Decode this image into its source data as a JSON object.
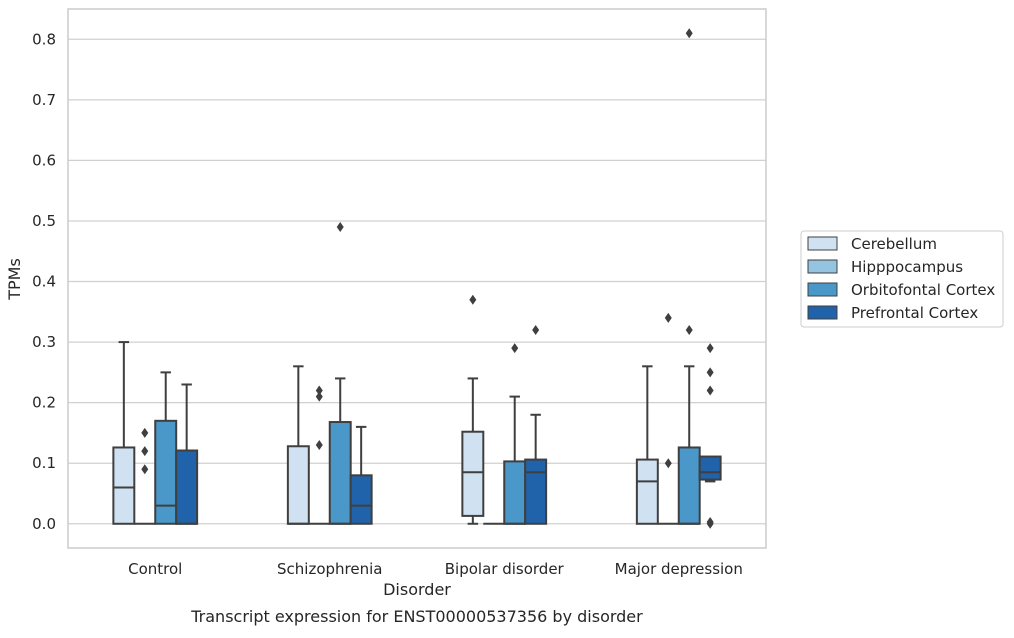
{
  "chart_data": {
    "type": "box",
    "caption": "Transcript expression for ENST00000537356 by disorder",
    "xlabel": "Disorder",
    "ylabel": "TPMs",
    "ylim": [
      -0.04,
      0.85
    ],
    "yticks": [
      "0.0",
      "0.1",
      "0.2",
      "0.3",
      "0.4",
      "0.5",
      "0.6",
      "0.7",
      "0.8"
    ],
    "ytick_values": [
      0,
      0.1,
      0.2,
      0.3,
      0.4,
      0.5,
      0.6,
      0.7,
      0.8
    ],
    "grid": "horizontal",
    "legend_position": "right",
    "categories": [
      "Control",
      "Schizophrenia",
      "Bipolar disorder",
      "Major depression"
    ],
    "series": [
      {
        "name": "Cerebellum",
        "color": "#d0e1f2",
        "boxes": [
          {
            "min": 0,
            "q1": 0,
            "median": 0.06,
            "q3": 0.126,
            "max": 0.3,
            "outliers": []
          },
          {
            "min": 0,
            "q1": 0,
            "median": 0,
            "q3": 0.128,
            "max": 0.26,
            "outliers": []
          },
          {
            "min": 0,
            "q1": 0.013,
            "median": 0.085,
            "q3": 0.152,
            "max": 0.24,
            "outliers": [
              0.37
            ]
          },
          {
            "min": 0,
            "q1": 0,
            "median": 0.07,
            "q3": 0.106,
            "max": 0.26,
            "outliers": []
          }
        ]
      },
      {
        "name": "Hipppocampus",
        "color": "#94c4df",
        "boxes": [
          {
            "min": 0,
            "q1": 0,
            "median": 0,
            "q3": 0,
            "max": 0,
            "outliers": [
              0.09,
              0.12,
              0.15
            ]
          },
          {
            "min": 0,
            "q1": 0,
            "median": 0,
            "q3": 0,
            "max": 0,
            "outliers": [
              0.13,
              0.21,
              0.22
            ]
          },
          {
            "min": 0,
            "q1": 0,
            "median": 0,
            "q3": 0,
            "max": 0,
            "outliers": []
          },
          {
            "min": 0,
            "q1": 0,
            "median": 0,
            "q3": 0,
            "max": 0,
            "outliers": [
              0.1,
              0.34
            ]
          }
        ]
      },
      {
        "name": "Orbitofontal Cortex",
        "color": "#4a98c9",
        "boxes": [
          {
            "min": 0,
            "q1": 0,
            "median": 0.03,
            "q3": 0.17,
            "max": 0.25,
            "outliers": []
          },
          {
            "min": 0,
            "q1": 0,
            "median": 0,
            "q3": 0.168,
            "max": 0.24,
            "outliers": [
              0.49
            ]
          },
          {
            "min": 0,
            "q1": 0,
            "median": 0,
            "q3": 0.103,
            "max": 0.21,
            "outliers": [
              0.29
            ]
          },
          {
            "min": 0,
            "q1": 0,
            "median": 0,
            "q3": 0.126,
            "max": 0.26,
            "outliers": [
              0.32,
              0.81
            ]
          }
        ]
      },
      {
        "name": "Prefrontal Cortex",
        "color": "#2163aa",
        "boxes": [
          {
            "min": 0,
            "q1": 0,
            "median": 0,
            "q3": 0.121,
            "max": 0.23,
            "outliers": []
          },
          {
            "min": 0,
            "q1": 0,
            "median": 0.03,
            "q3": 0.08,
            "max": 0.16,
            "outliers": []
          },
          {
            "min": 0,
            "q1": 0,
            "median": 0.085,
            "q3": 0.106,
            "max": 0.18,
            "outliers": [
              0.32
            ]
          },
          {
            "min": 0.07,
            "q1": 0.073,
            "median": 0.085,
            "q3": 0.111,
            "max": 0.111,
            "outliers": [
              0.0,
              0.003,
              0.22,
              0.25,
              0.29
            ]
          }
        ]
      }
    ]
  }
}
